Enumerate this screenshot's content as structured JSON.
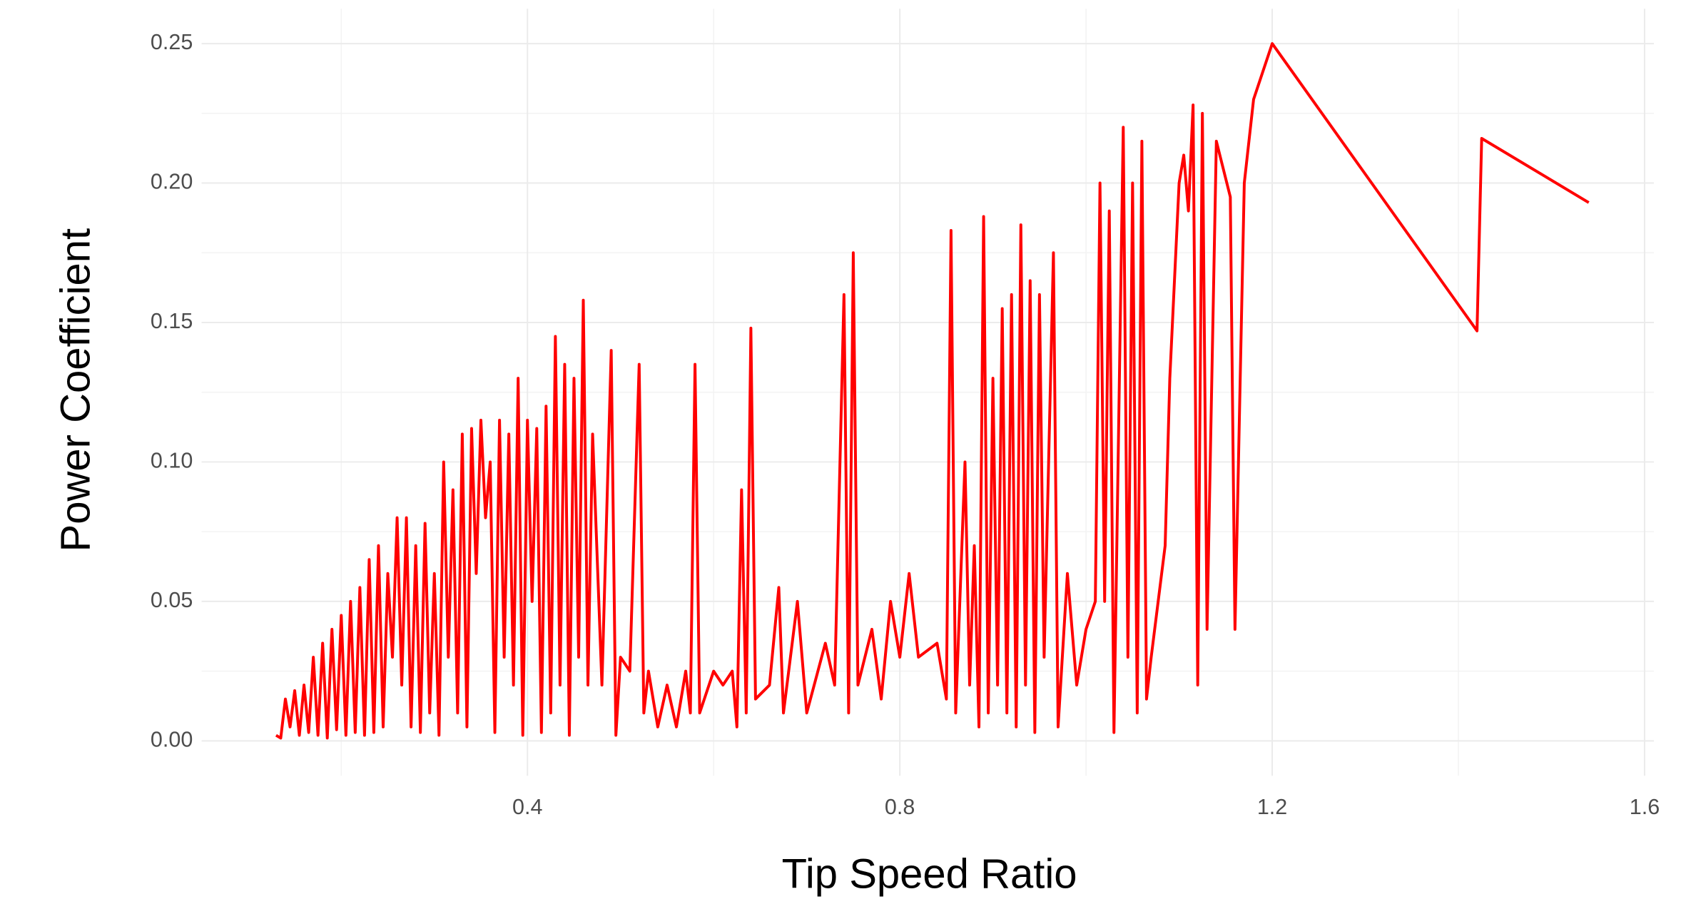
{
  "chart_data": {
    "type": "line",
    "x_label": "Tip Speed Ratio",
    "y_label": "Power Coefficient",
    "color": "#ff0000",
    "grid": true,
    "xlim": [
      0.05,
      1.61
    ],
    "ylim": [
      -0.0125,
      0.2625
    ],
    "xticks": [
      0.4,
      0.8,
      1.2,
      1.6
    ],
    "yticks": [
      {
        "value": 0,
        "label": "0.00"
      },
      {
        "value": 0.05,
        "label": "0.05"
      },
      {
        "value": 0.1,
        "label": "0.10"
      },
      {
        "value": 0.15,
        "label": "0.15"
      },
      {
        "value": 0.2,
        "label": "0.20"
      },
      {
        "value": 0.25,
        "label": "0.25"
      }
    ],
    "x_minor_ticks": [
      0.2,
      0.6,
      1.0,
      1.4
    ],
    "y_minor_ticks": [
      0.025,
      0.075,
      0.125,
      0.175,
      0.225
    ],
    "x": [
      0.13,
      0.135,
      0.14,
      0.145,
      0.15,
      0.155,
      0.16,
      0.165,
      0.17,
      0.175,
      0.18,
      0.185,
      0.19,
      0.195,
      0.2,
      0.205,
      0.21,
      0.215,
      0.22,
      0.225,
      0.23,
      0.235,
      0.24,
      0.245,
      0.25,
      0.255,
      0.26,
      0.265,
      0.27,
      0.275,
      0.28,
      0.285,
      0.29,
      0.295,
      0.3,
      0.305,
      0.31,
      0.315,
      0.32,
      0.325,
      0.33,
      0.335,
      0.34,
      0.345,
      0.35,
      0.355,
      0.36,
      0.365,
      0.37,
      0.375,
      0.38,
      0.385,
      0.39,
      0.395,
      0.4,
      0.405,
      0.41,
      0.415,
      0.42,
      0.425,
      0.43,
      0.435,
      0.44,
      0.445,
      0.45,
      0.455,
      0.46,
      0.465,
      0.47,
      0.48,
      0.49,
      0.495,
      0.5,
      0.51,
      0.52,
      0.525,
      0.53,
      0.54,
      0.55,
      0.56,
      0.57,
      0.575,
      0.58,
      0.585,
      0.6,
      0.61,
      0.62,
      0.625,
      0.63,
      0.635,
      0.64,
      0.645,
      0.66,
      0.67,
      0.675,
      0.69,
      0.7,
      0.72,
      0.73,
      0.74,
      0.745,
      0.75,
      0.755,
      0.77,
      0.78,
      0.79,
      0.8,
      0.81,
      0.82,
      0.84,
      0.85,
      0.855,
      0.86,
      0.87,
      0.875,
      0.88,
      0.885,
      0.89,
      0.895,
      0.9,
      0.905,
      0.91,
      0.915,
      0.92,
      0.925,
      0.93,
      0.935,
      0.94,
      0.945,
      0.95,
      0.955,
      0.965,
      0.97,
      0.98,
      0.99,
      1.0,
      1.01,
      1.015,
      1.02,
      1.025,
      1.03,
      1.04,
      1.045,
      1.05,
      1.055,
      1.06,
      1.065,
      1.07,
      1.085,
      1.09,
      1.1,
      1.105,
      1.11,
      1.115,
      1.12,
      1.125,
      1.13,
      1.14,
      1.155,
      1.16,
      1.17,
      1.18,
      1.2,
      1.42,
      1.425,
      1.54
    ],
    "values": [
      0.002,
      0.001,
      0.015,
      0.005,
      0.018,
      0.002,
      0.02,
      0.003,
      0.03,
      0.002,
      0.035,
      0.001,
      0.04,
      0.004,
      0.045,
      0.002,
      0.05,
      0.003,
      0.055,
      0.002,
      0.065,
      0.003,
      0.07,
      0.005,
      0.06,
      0.03,
      0.08,
      0.02,
      0.08,
      0.005,
      0.07,
      0.003,
      0.078,
      0.01,
      0.06,
      0.002,
      0.1,
      0.03,
      0.09,
      0.01,
      0.11,
      0.005,
      0.112,
      0.06,
      0.115,
      0.08,
      0.1,
      0.003,
      0.115,
      0.03,
      0.11,
      0.02,
      0.13,
      0.002,
      0.115,
      0.05,
      0.112,
      0.003,
      0.12,
      0.01,
      0.145,
      0.02,
      0.135,
      0.002,
      0.13,
      0.03,
      0.158,
      0.02,
      0.11,
      0.02,
      0.14,
      0.002,
      0.03,
      0.025,
      0.135,
      0.01,
      0.025,
      0.005,
      0.02,
      0.005,
      0.025,
      0.01,
      0.135,
      0.01,
      0.025,
      0.02,
      0.025,
      0.005,
      0.09,
      0.01,
      0.148,
      0.015,
      0.02,
      0.055,
      0.01,
      0.05,
      0.01,
      0.035,
      0.02,
      0.16,
      0.01,
      0.175,
      0.02,
      0.04,
      0.015,
      0.05,
      0.03,
      0.06,
      0.03,
      0.035,
      0.015,
      0.183,
      0.01,
      0.1,
      0.02,
      0.07,
      0.005,
      0.188,
      0.01,
      0.13,
      0.02,
      0.155,
      0.01,
      0.16,
      0.005,
      0.185,
      0.02,
      0.165,
      0.003,
      0.16,
      0.03,
      0.175,
      0.005,
      0.06,
      0.02,
      0.04,
      0.05,
      0.2,
      0.05,
      0.19,
      0.003,
      0.22,
      0.03,
      0.2,
      0.01,
      0.215,
      0.015,
      0.03,
      0.07,
      0.13,
      0.2,
      0.21,
      0.19,
      0.228,
      0.02,
      0.225,
      0.04,
      0.215,
      0.195,
      0.04,
      0.2,
      0.23,
      0.25,
      0.147,
      0.216,
      0.193
    ]
  }
}
